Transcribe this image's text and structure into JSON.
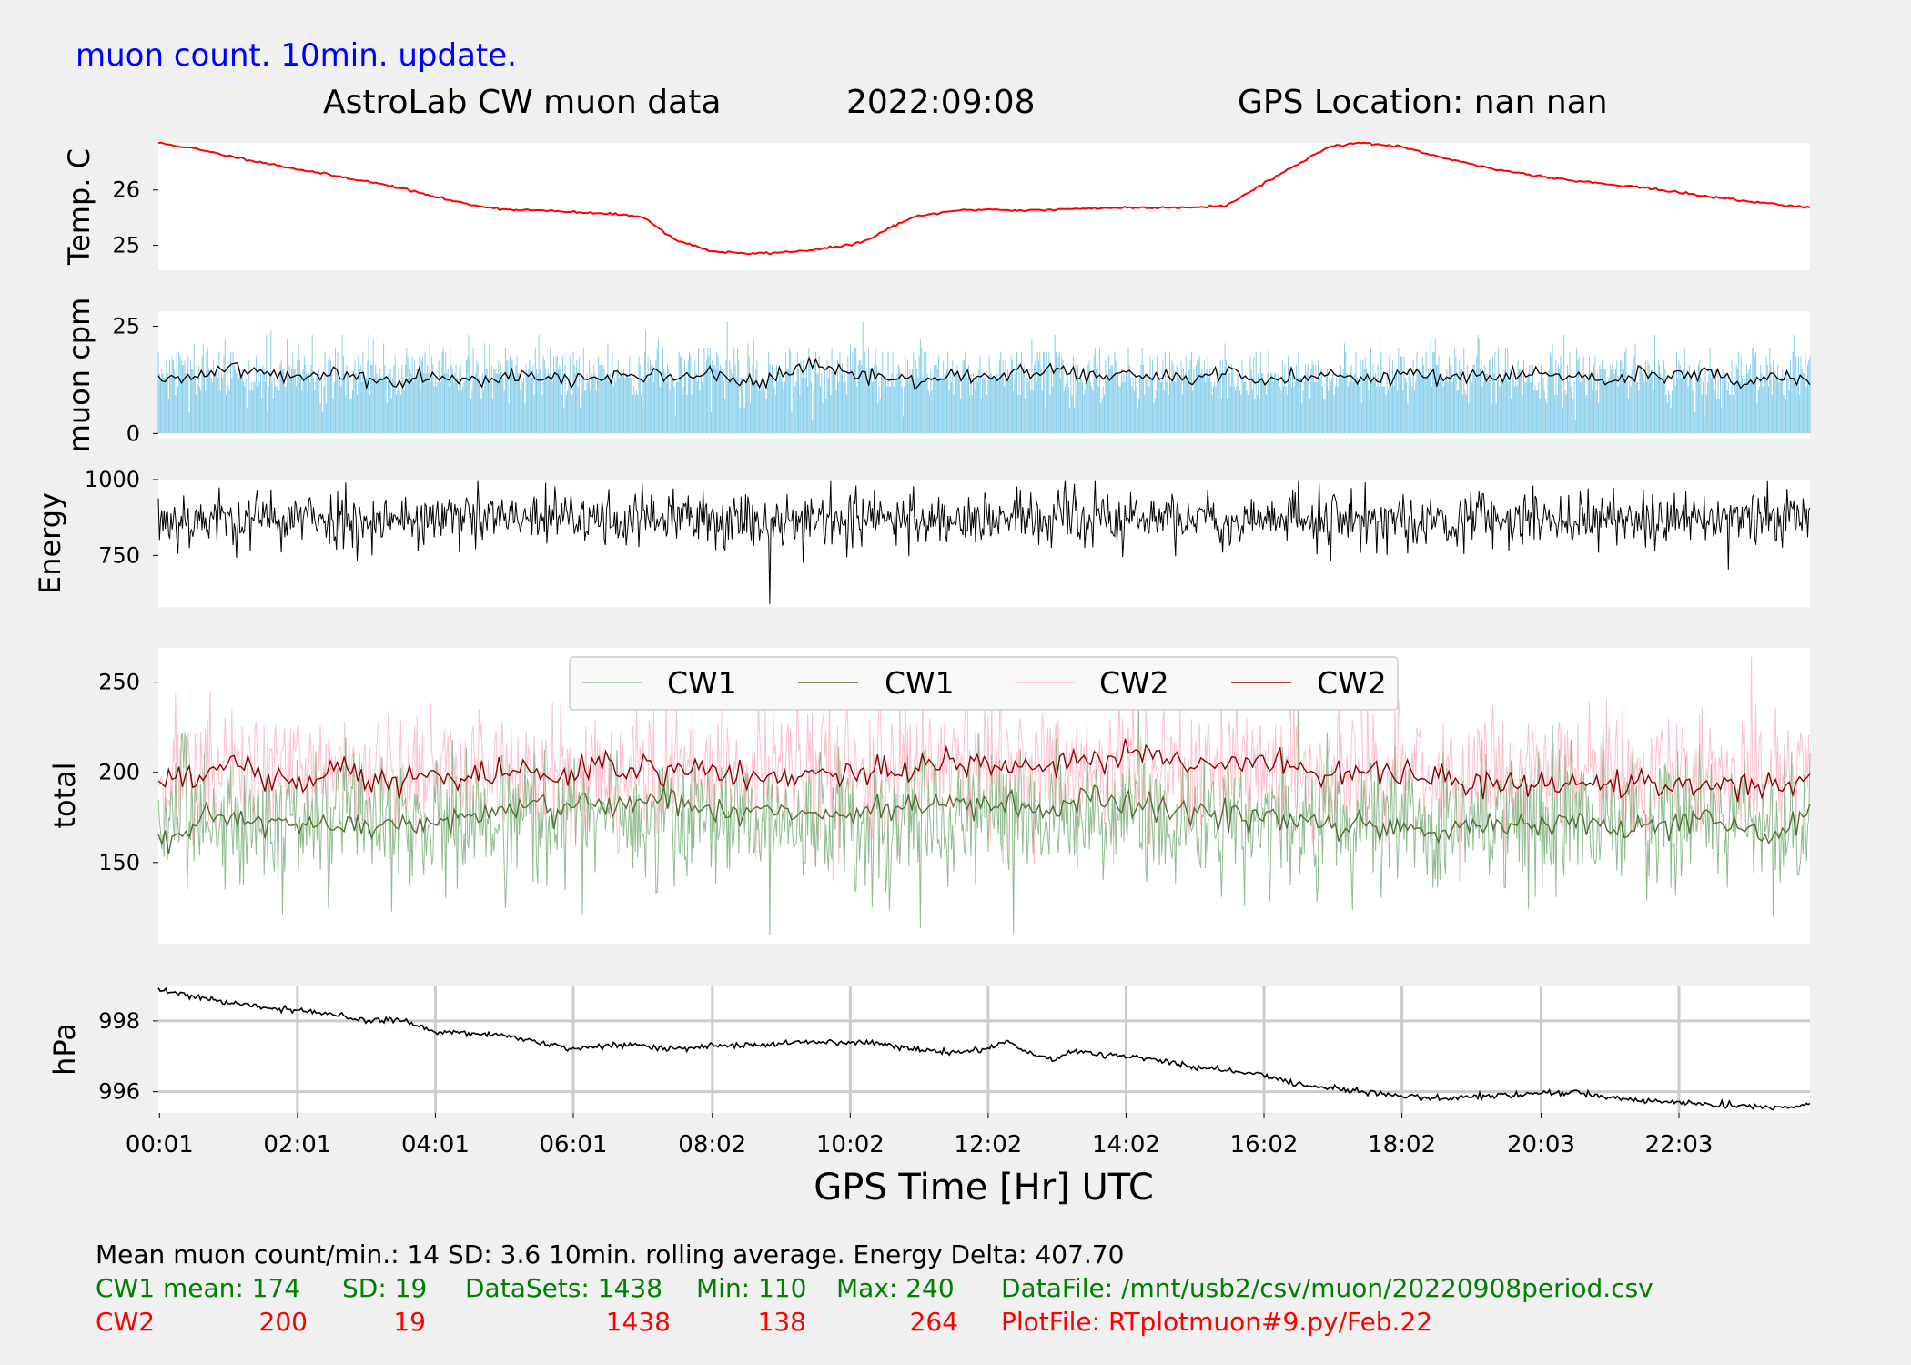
{
  "header": {
    "update_note": "muon count.  10min. update.",
    "title": "AstroLab CW muon data",
    "date": "2022:09:08",
    "location": "GPS Location: nan   nan"
  },
  "colors": {
    "background": "#f0f0f0",
    "panel": "#ffffff",
    "temp": "#ff0000",
    "muon_bar": "#87ceeb",
    "black": "#000000",
    "cw1_raw": "#8fbc8f",
    "cw1_avg": "#556b2f",
    "cw2_raw": "#ffc0cb",
    "cw2_avg": "#8b0000",
    "note_blue": "#0000ff",
    "green_text": "#008000",
    "red_text": "#ff0000",
    "grid": "#cccccc"
  },
  "chart_data": [
    {
      "type": "line",
      "id": "temp",
      "ylabel": "Temp. C",
      "ylim": [
        24.55,
        26.85
      ],
      "yticks": [
        25,
        26
      ],
      "ytick_labels": [
        "25",
        "26"
      ],
      "series": [
        {
          "color": "#ff0000",
          "jitter": 0.01,
          "x": [
            0,
            0.25,
            0.5,
            1,
            1.5,
            2,
            2.5,
            3,
            3.5,
            4,
            4.5,
            5,
            5.5,
            6,
            6.5,
            7,
            7.5,
            8,
            8.5,
            9,
            9.5,
            10,
            10.3,
            10.7,
            11,
            11.5,
            12,
            12.5,
            13,
            13.5,
            14,
            14.5,
            15,
            15.5,
            16,
            16.5,
            17,
            17.5,
            18,
            18.5,
            19,
            19.5,
            20,
            20.5,
            21,
            21.5,
            22,
            22.5,
            23,
            23.5,
            23.95
          ],
          "y": [
            26.85,
            26.8,
            26.75,
            26.62,
            26.5,
            26.38,
            26.27,
            26.16,
            26.04,
            25.88,
            25.74,
            25.65,
            25.63,
            25.6,
            25.57,
            25.53,
            25.1,
            24.9,
            24.85,
            24.87,
            24.92,
            25.0,
            25.1,
            25.38,
            25.52,
            25.62,
            25.65,
            25.63,
            25.64,
            25.67,
            25.68,
            25.68,
            25.69,
            25.72,
            26.1,
            26.45,
            26.8,
            26.85,
            26.78,
            26.62,
            26.47,
            26.35,
            26.26,
            26.17,
            26.11,
            26.05,
            25.96,
            25.88,
            25.8,
            25.74,
            25.68
          ]
        }
      ]
    },
    {
      "type": "bar",
      "id": "muon",
      "ylabel": "muon cpm",
      "ylim": [
        -1.2,
        28.5
      ],
      "yticks": [
        0,
        25
      ],
      "ytick_labels": [
        "0",
        "25"
      ],
      "bars": {
        "color": "#87ceeb",
        "count": 1438,
        "mean": 14,
        "sd": 3.6,
        "max": 31,
        "x_start": 0,
        "x_end": 23.95
      },
      "series": [
        {
          "color": "#000000",
          "jitter": 0.9,
          "x": [
            0,
            0.5,
            1,
            1.5,
            2,
            2.5,
            3,
            3.5,
            4,
            4.5,
            5,
            5.5,
            6,
            6.5,
            7,
            7.5,
            8,
            8.5,
            9,
            9.5,
            10,
            10.5,
            11,
            11.5,
            12,
            12.5,
            13,
            13.5,
            14,
            14.5,
            15,
            15.5,
            16,
            16.5,
            17,
            17.5,
            18,
            18.5,
            19,
            19.5,
            20,
            20.5,
            21,
            21.5,
            22,
            22.5,
            23,
            23.5,
            23.95
          ],
          "y": [
            12,
            13,
            16,
            14,
            13,
            14,
            13,
            12,
            14,
            13,
            13,
            14,
            12,
            13,
            14,
            13,
            14,
            12,
            13,
            16,
            14,
            13,
            12,
            14,
            13,
            14,
            15,
            13,
            14,
            13,
            13,
            14,
            12,
            13,
            14,
            13,
            14,
            13,
            14,
            13,
            14,
            13,
            12,
            14,
            13,
            14,
            12,
            14,
            13
          ]
        }
      ]
    },
    {
      "type": "line",
      "id": "energy",
      "ylabel": "Energy",
      "ylim": [
        580,
        1000
      ],
      "yticks": [
        750,
        1000
      ],
      "ytick_labels": [
        "750",
        "1000"
      ],
      "series": [
        {
          "color": "#000000",
          "generator": {
            "count": 1438,
            "mean": 870,
            "sd": 48,
            "min": 590,
            "max": 995,
            "x_start": 0,
            "x_end": 23.95
          }
        }
      ]
    },
    {
      "type": "line",
      "id": "total",
      "ylabel": "total",
      "ylim": [
        105,
        269
      ],
      "yticks": [
        150,
        200,
        250
      ],
      "ytick_labels": [
        "150",
        "200",
        "250"
      ],
      "legend": {
        "location": "upper center",
        "entries": [
          "CW1",
          "CW1",
          "CW2",
          "CW2"
        ]
      },
      "series": [
        {
          "name": "CW1",
          "color": "#8fbc8f",
          "generator": {
            "count": 1438,
            "mean": 174,
            "sd": 19,
            "min": 110,
            "max": 240,
            "x_start": 0,
            "x_end": 23.95
          }
        },
        {
          "name": "CW1",
          "color": "#556b2f",
          "jitter": 4,
          "x": [
            0,
            0.5,
            1,
            1.5,
            2,
            2.5,
            3,
            3.5,
            4,
            4.5,
            5,
            5.5,
            6,
            6.5,
            7,
            7.5,
            8,
            8.5,
            9,
            9.5,
            10,
            10.5,
            11,
            11.5,
            12,
            12.5,
            13,
            13.5,
            14,
            14.5,
            15,
            15.5,
            16,
            16.5,
            17,
            17.5,
            18,
            18.5,
            19,
            19.5,
            20,
            20.5,
            21,
            21.5,
            22,
            22.5,
            23,
            23.5,
            23.95
          ],
          "y": [
            160,
            168,
            175,
            172,
            170,
            168,
            172,
            170,
            172,
            176,
            178,
            180,
            181,
            182,
            184,
            185,
            180,
            178,
            180,
            177,
            176,
            180,
            182,
            180,
            183,
            180,
            178,
            185,
            182,
            180,
            178,
            176,
            175,
            172,
            170,
            172,
            170,
            168,
            170,
            172,
            170,
            172,
            170,
            168,
            172,
            174,
            170,
            165,
            180
          ]
        },
        {
          "name": "CW2",
          "color": "#ffc0cb",
          "generator": {
            "count": 1438,
            "mean": 200,
            "sd": 19,
            "min": 138,
            "max": 264,
            "x_start": 0,
            "x_end": 23.95
          }
        },
        {
          "name": "CW2",
          "color": "#8b0000",
          "jitter": 4,
          "x": [
            0,
            0.5,
            1,
            1.5,
            2,
            2.5,
            3,
            3.5,
            4,
            4.5,
            5,
            5.5,
            6,
            6.5,
            7,
            7.5,
            8,
            8.5,
            9,
            9.5,
            10,
            10.5,
            11,
            11.5,
            12,
            12.5,
            13,
            13.5,
            14,
            14.5,
            15,
            15.5,
            16,
            16.5,
            17,
            17.5,
            18,
            18.5,
            19,
            19.5,
            20,
            20.5,
            21,
            21.5,
            22,
            22.5,
            23,
            23.5,
            23.95
          ],
          "y": [
            200,
            195,
            205,
            198,
            195,
            200,
            198,
            196,
            200,
            198,
            202,
            200,
            198,
            204,
            200,
            203,
            198,
            196,
            198,
            200,
            198,
            202,
            200,
            206,
            204,
            203,
            205,
            208,
            212,
            210,
            205,
            203,
            205,
            203,
            200,
            202,
            198,
            196,
            194,
            195,
            194,
            196,
            192,
            195,
            190,
            195,
            192,
            190,
            200
          ]
        }
      ]
    },
    {
      "type": "line",
      "id": "pressure",
      "ylabel": "hPa",
      "ylim": [
        995.4,
        999.0
      ],
      "yticks": [
        996,
        998
      ],
      "ytick_labels": [
        "996",
        "998"
      ],
      "grid": true,
      "series": [
        {
          "color": "#000000",
          "jitter": 0.04,
          "x": [
            0,
            0.5,
            1,
            1.5,
            2,
            2.5,
            3,
            3.5,
            4,
            4.5,
            5,
            5.5,
            6,
            6.5,
            7,
            7.5,
            8,
            8.5,
            9,
            9.5,
            10,
            10.5,
            11,
            11.5,
            12,
            12.3,
            12.6,
            13,
            13.4,
            13.6,
            14,
            14.5,
            15,
            15.5,
            16,
            16.5,
            17,
            17.5,
            18,
            18.5,
            19,
            19.5,
            20,
            20.5,
            21,
            21.5,
            22,
            22.5,
            23,
            23.5,
            23.95
          ],
          "y": [
            998.9,
            998.7,
            998.5,
            998.4,
            998.3,
            998.2,
            998.0,
            998.05,
            997.7,
            997.65,
            997.6,
            997.4,
            997.2,
            997.3,
            997.3,
            997.2,
            997.3,
            997.3,
            997.35,
            997.4,
            997.4,
            997.35,
            997.2,
            997.1,
            997.2,
            997.4,
            997.1,
            996.9,
            997.2,
            997.05,
            997.0,
            996.9,
            996.7,
            996.6,
            996.5,
            996.2,
            996.1,
            996.0,
            995.9,
            995.8,
            995.85,
            995.9,
            995.95,
            996.0,
            995.85,
            995.75,
            995.7,
            995.65,
            995.6,
            995.55,
            995.65
          ]
        }
      ]
    }
  ],
  "x_axis": {
    "label": "GPS Time  [Hr] UTC",
    "xlim": [
      0,
      23.95
    ],
    "tick_values": [
      0.017,
      2.017,
      4.017,
      6.017,
      8.033,
      10.033,
      12.033,
      14.033,
      16.033,
      18.033,
      20.05,
      22.05
    ],
    "tick_labels": [
      "00:01",
      "02:01",
      "04:01",
      "06:01",
      "08:02",
      "10:02",
      "12:02",
      "14:02",
      "16:02",
      "18:02",
      "20:03",
      "22:03"
    ]
  },
  "stats": {
    "line1": "Mean muon count/min.: 14  SD: 3.6   10min. rolling average.    Energy Delta:  407.70",
    "cw1": {
      "label": "CW1 mean: 174",
      "sd": "SD: 19",
      "datasets": "DataSets: 1438",
      "min": "Min: 110",
      "max": "Max: 240",
      "file": "DataFile: /mnt/usb2/csv/muon/20220908period.csv"
    },
    "cw2": {
      "label": "CW2",
      "mean": "200",
      "sd": "19",
      "datasets": "1438",
      "min": "138",
      "max": "264",
      "file": "PlotFile: RTplotmuon#9.py/Feb.22"
    }
  }
}
